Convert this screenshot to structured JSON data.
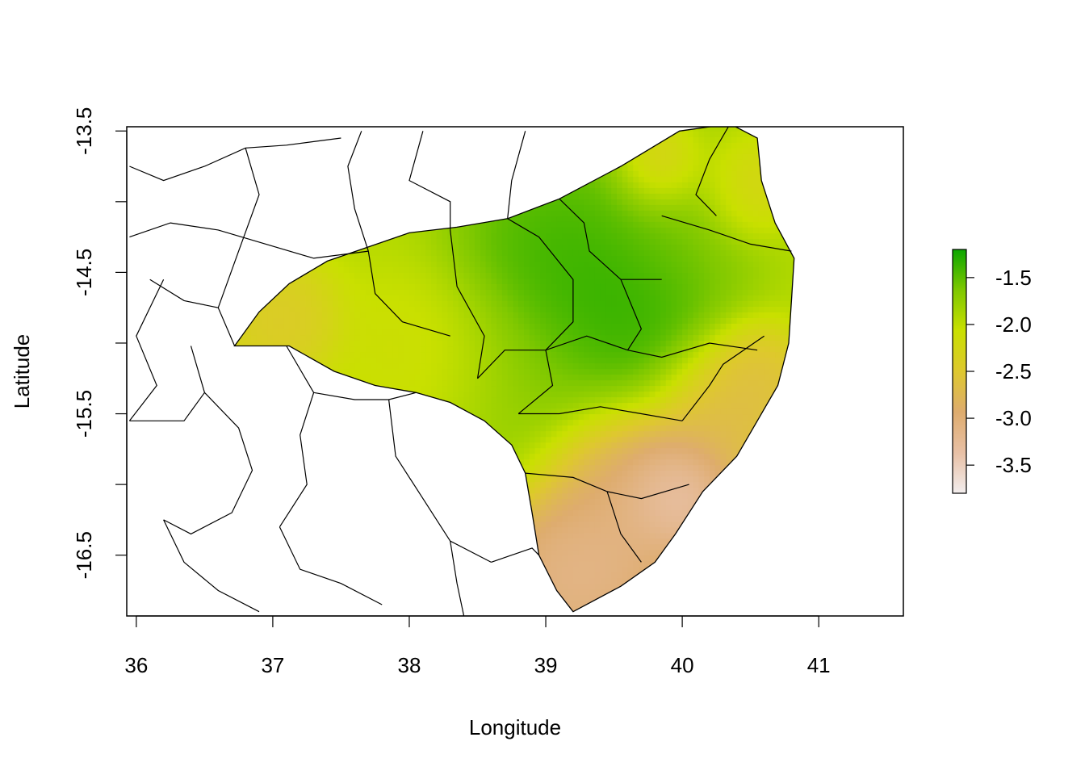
{
  "chart_data": {
    "type": "heatmap",
    "xlabel": "Longitude",
    "ylabel": "Latitude",
    "xlim": [
      35.93,
      41.62
    ],
    "ylim": [
      -16.93,
      -13.47
    ],
    "x_ticks": [
      {
        "value": 36,
        "label": "36"
      },
      {
        "value": 37,
        "label": "37"
      },
      {
        "value": 38,
        "label": "38"
      },
      {
        "value": 39,
        "label": "39"
      },
      {
        "value": 40,
        "label": "40"
      },
      {
        "value": 41,
        "label": "41"
      }
    ],
    "y_ticks": [
      {
        "value": -13.5,
        "label": "-13.5"
      },
      {
        "value": -14.5,
        "label": "-14.5"
      },
      {
        "value": -15.5,
        "label": "-15.5"
      },
      {
        "value": -16.5,
        "label": "-16.5"
      }
    ],
    "y_minor_ticks": [
      -14.0,
      -15.0,
      -16.0
    ],
    "legend": {
      "position": "right",
      "range": [
        -3.8,
        -1.2
      ],
      "ticks": [
        {
          "value": -1.5,
          "label": "-1.5"
        },
        {
          "value": -2.0,
          "label": "-2.0"
        },
        {
          "value": -2.5,
          "label": "-2.5"
        },
        {
          "value": -3.0,
          "label": "-3.0"
        },
        {
          "value": -3.5,
          "label": "-3.5"
        }
      ],
      "colors": [
        "#f2eded",
        "#e8c0a5",
        "#deac6e",
        "#dec82e",
        "#c9e000",
        "#7fc800",
        "#0ca600"
      ]
    },
    "field_hotspots": [
      {
        "lon": 39.45,
        "lat": -14.75,
        "value": -1.2,
        "sigma": 0.45
      },
      {
        "lon": 39.05,
        "lat": -14.35,
        "value": -1.35,
        "sigma": 0.4
      },
      {
        "lon": 38.8,
        "lat": -15.3,
        "value": -1.7,
        "sigma": 0.4
      },
      {
        "lon": 39.95,
        "lat": -14.05,
        "value": -1.6,
        "sigma": 0.35
      },
      {
        "lon": 37.05,
        "lat": -14.85,
        "value": -2.55,
        "sigma": 0.25
      },
      {
        "lon": 38.2,
        "lat": -15.1,
        "value": -2.2,
        "sigma": 0.35
      },
      {
        "lon": 39.85,
        "lat": -13.75,
        "value": -2.75,
        "sigma": 0.18
      },
      {
        "lon": 40.45,
        "lat": -13.9,
        "value": -2.45,
        "sigma": 0.2
      },
      {
        "lon": 40.55,
        "lat": -15.25,
        "value": -2.7,
        "sigma": 0.2
      },
      {
        "lon": 39.95,
        "lat": -16.05,
        "value": -3.75,
        "sigma": 0.25
      },
      {
        "lon": 39.35,
        "lat": -16.55,
        "value": -3.35,
        "sigma": 0.35
      },
      {
        "lon": 39.5,
        "lat": -15.95,
        "value": -3.1,
        "sigma": 0.3
      },
      {
        "lon": 39.1,
        "lat": -16.75,
        "value": -3.2,
        "sigma": 0.3
      },
      {
        "lon": 40.3,
        "lat": -15.55,
        "value": -2.85,
        "sigma": 0.3
      }
    ],
    "background_value": -1.95,
    "study_area_outline": [
      [
        36.72,
        -15.02
      ],
      [
        37.12,
        -15.02
      ],
      [
        37.45,
        -15.2
      ],
      [
        37.75,
        -15.3
      ],
      [
        38.05,
        -15.35
      ],
      [
        38.3,
        -15.42
      ],
      [
        38.55,
        -15.55
      ],
      [
        38.75,
        -15.72
      ],
      [
        38.85,
        -15.92
      ],
      [
        38.9,
        -16.2
      ],
      [
        38.95,
        -16.5
      ],
      [
        39.08,
        -16.75
      ],
      [
        39.2,
        -16.9
      ],
      [
        39.55,
        -16.72
      ],
      [
        39.8,
        -16.55
      ],
      [
        39.95,
        -16.35
      ],
      [
        40.15,
        -16.05
      ],
      [
        40.4,
        -15.8
      ],
      [
        40.55,
        -15.55
      ],
      [
        40.7,
        -15.3
      ],
      [
        40.78,
        -15.0
      ],
      [
        40.8,
        -14.7
      ],
      [
        40.82,
        -14.4
      ],
      [
        40.68,
        -14.15
      ],
      [
        40.58,
        -13.85
      ],
      [
        40.55,
        -13.55
      ],
      [
        40.35,
        -13.45
      ],
      [
        39.98,
        -13.5
      ],
      [
        39.55,
        -13.75
      ],
      [
        39.1,
        -13.98
      ],
      [
        38.72,
        -14.12
      ],
      [
        38.35,
        -14.18
      ],
      [
        38.0,
        -14.22
      ],
      [
        37.7,
        -14.32
      ],
      [
        37.4,
        -14.42
      ],
      [
        37.12,
        -14.58
      ],
      [
        36.9,
        -14.78
      ]
    ],
    "region_boundaries": [
      [
        [
          37.7,
          -14.35
        ],
        [
          37.75,
          -14.65
        ],
        [
          37.95,
          -14.85
        ],
        [
          38.3,
          -14.95
        ]
      ],
      [
        [
          38.3,
          -14.2
        ],
        [
          38.35,
          -14.6
        ],
        [
          38.55,
          -14.95
        ],
        [
          38.5,
          -15.25
        ]
      ],
      [
        [
          38.72,
          -14.12
        ],
        [
          38.95,
          -14.25
        ],
        [
          39.2,
          -14.55
        ],
        [
          39.2,
          -14.85
        ],
        [
          39.0,
          -15.05
        ]
      ],
      [
        [
          38.5,
          -15.25
        ],
        [
          38.7,
          -15.05
        ],
        [
          39.0,
          -15.05
        ],
        [
          39.3,
          -14.95
        ],
        [
          39.6,
          -15.05
        ]
      ],
      [
        [
          39.1,
          -13.98
        ],
        [
          39.28,
          -14.15
        ],
        [
          39.32,
          -14.35
        ],
        [
          39.55,
          -14.55
        ],
        [
          39.85,
          -14.55
        ]
      ],
      [
        [
          39.85,
          -14.1
        ],
        [
          40.2,
          -14.2
        ],
        [
          40.5,
          -14.3
        ],
        [
          40.8,
          -14.35
        ]
      ],
      [
        [
          39.6,
          -15.05
        ],
        [
          39.85,
          -15.1
        ],
        [
          40.2,
          -15.0
        ],
        [
          40.55,
          -15.05
        ]
      ],
      [
        [
          38.8,
          -15.5
        ],
        [
          39.1,
          -15.5
        ],
        [
          39.4,
          -15.45
        ],
        [
          39.7,
          -15.5
        ],
        [
          40.0,
          -15.55
        ]
      ],
      [
        [
          38.85,
          -15.92
        ],
        [
          39.2,
          -15.95
        ],
        [
          39.45,
          -16.05
        ],
        [
          39.7,
          -16.1
        ],
        [
          40.05,
          -16.0
        ]
      ],
      [
        [
          39.45,
          -16.05
        ],
        [
          39.55,
          -16.35
        ],
        [
          39.7,
          -16.55
        ]
      ],
      [
        [
          40.0,
          -15.55
        ],
        [
          40.2,
          -15.3
        ],
        [
          40.3,
          -15.15
        ],
        [
          40.6,
          -14.95
        ]
      ],
      [
        [
          40.35,
          -13.45
        ],
        [
          40.2,
          -13.7
        ],
        [
          40.1,
          -13.95
        ],
        [
          40.25,
          -14.1
        ]
      ],
      [
        [
          39.55,
          -14.55
        ],
        [
          39.7,
          -14.9
        ],
        [
          39.6,
          -15.05
        ]
      ],
      [
        [
          39.0,
          -15.05
        ],
        [
          39.05,
          -15.3
        ],
        [
          38.8,
          -15.5
        ]
      ]
    ],
    "outer_boundaries": [
      [
        [
          35.95,
          -13.75
        ],
        [
          36.2,
          -13.85
        ],
        [
          36.5,
          -13.75
        ],
        [
          36.8,
          -13.62
        ],
        [
          37.1,
          -13.6
        ],
        [
          37.5,
          -13.55
        ]
      ],
      [
        [
          35.95,
          -14.25
        ],
        [
          36.25,
          -14.15
        ],
        [
          36.6,
          -14.2
        ],
        [
          36.95,
          -14.3
        ],
        [
          37.3,
          -14.4
        ],
        [
          37.7,
          -14.35
        ]
      ],
      [
        [
          36.1,
          -14.55
        ],
        [
          36.35,
          -14.7
        ],
        [
          36.6,
          -14.75
        ],
        [
          36.72,
          -15.02
        ]
      ],
      [
        [
          36.4,
          -15.02
        ],
        [
          36.5,
          -15.35
        ],
        [
          36.35,
          -15.55
        ],
        [
          35.95,
          -15.55
        ]
      ],
      [
        [
          37.1,
          -15.02
        ],
        [
          37.3,
          -15.35
        ],
        [
          37.2,
          -15.65
        ],
        [
          37.25,
          -16.0
        ],
        [
          37.05,
          -16.3
        ]
      ],
      [
        [
          36.5,
          -15.35
        ],
        [
          36.75,
          -15.6
        ],
        [
          36.85,
          -15.9
        ],
        [
          36.7,
          -16.2
        ],
        [
          36.4,
          -16.35
        ],
        [
          36.2,
          -16.25
        ]
      ],
      [
        [
          37.85,
          -15.4
        ],
        [
          37.9,
          -15.8
        ],
        [
          38.1,
          -16.1
        ],
        [
          38.3,
          -16.4
        ],
        [
          38.6,
          -16.55
        ]
      ],
      [
        [
          37.3,
          -15.35
        ],
        [
          37.6,
          -15.4
        ],
        [
          37.85,
          -15.4
        ],
        [
          38.05,
          -15.35
        ]
      ],
      [
        [
          36.2,
          -16.25
        ],
        [
          36.35,
          -16.55
        ],
        [
          36.6,
          -16.75
        ],
        [
          36.9,
          -16.9
        ]
      ],
      [
        [
          37.05,
          -16.3
        ],
        [
          37.2,
          -16.6
        ],
        [
          37.5,
          -16.7
        ],
        [
          37.8,
          -16.85
        ]
      ],
      [
        [
          38.3,
          -16.4
        ],
        [
          38.35,
          -16.7
        ],
        [
          38.4,
          -16.93
        ]
      ],
      [
        [
          38.6,
          -16.55
        ],
        [
          38.9,
          -16.45
        ],
        [
          38.95,
          -16.5
        ]
      ],
      [
        [
          36.2,
          -14.55
        ],
        [
          36.0,
          -14.95
        ],
        [
          36.15,
          -15.3
        ],
        [
          35.95,
          -15.55
        ]
      ],
      [
        [
          38.1,
          -13.5
        ],
        [
          38.0,
          -13.85
        ],
        [
          38.3,
          -14.0
        ],
        [
          38.3,
          -14.2
        ]
      ],
      [
        [
          38.85,
          -13.5
        ],
        [
          38.75,
          -13.85
        ],
        [
          38.72,
          -14.12
        ]
      ],
      [
        [
          37.65,
          -13.5
        ],
        [
          37.55,
          -13.75
        ],
        [
          37.6,
          -14.05
        ],
        [
          37.7,
          -14.35
        ]
      ],
      [
        [
          36.8,
          -13.62
        ],
        [
          36.9,
          -13.95
        ],
        [
          36.75,
          -14.35
        ],
        [
          36.6,
          -14.75
        ]
      ]
    ]
  }
}
